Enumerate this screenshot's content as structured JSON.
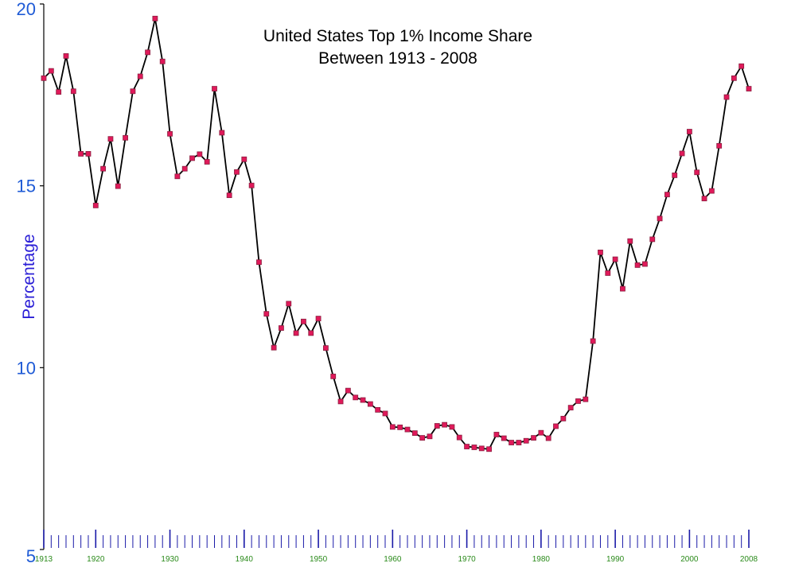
{
  "chart_data": {
    "type": "line",
    "title_lines": [
      "United States Top 1% Income Share",
      "Between 1913 - 2008"
    ],
    "xlabel": "",
    "ylabel": "Percentage",
    "xlim": [
      1913,
      2008
    ],
    "ylim": [
      5,
      20
    ],
    "y_ticks": [
      5,
      10,
      15,
      20
    ],
    "x_tick_labels": [
      1913,
      1920,
      1930,
      1940,
      1950,
      1960,
      1970,
      1980,
      1990,
      2000,
      2008
    ],
    "grid": false,
    "legend": "none",
    "colors": {
      "line": "#000000",
      "marker_fill": "#e0195a",
      "marker_edge": "#8a2040",
      "y_text": "#1f5bd6",
      "ylabel_text": "#2a1ed6",
      "x_text": "#2a8a1a",
      "x_tick_marks": "#1a1aa8",
      "axis": "#000000"
    },
    "series": [
      {
        "x": [
          1913,
          1914,
          1915,
          1916,
          1917,
          1918,
          1919,
          1920,
          1921,
          1922,
          1923,
          1924,
          1925,
          1926,
          1927,
          1928,
          1929,
          1930,
          1931,
          1932,
          1933,
          1934,
          1935,
          1936,
          1937,
          1938,
          1939,
          1940,
          1941,
          1942,
          1943,
          1944,
          1945,
          1946,
          1947,
          1948,
          1949,
          1950,
          1951,
          1952,
          1953,
          1954,
          1955,
          1956,
          1957,
          1958,
          1959,
          1960,
          1961,
          1962,
          1963,
          1964,
          1965,
          1966,
          1967,
          1968,
          1969,
          1970,
          1971,
          1972,
          1973,
          1974,
          1975,
          1976,
          1977,
          1978,
          1979,
          1980,
          1981,
          1982,
          1983,
          1984,
          1985,
          1986,
          1987,
          1988,
          1989,
          1990,
          1991,
          1992,
          1993,
          1994,
          1995,
          1996,
          1997,
          1998,
          1999,
          2000,
          2001,
          2002,
          2003,
          2004,
          2005,
          2006,
          2007,
          2008
        ],
        "values": [
          17.96,
          18.16,
          17.58,
          18.57,
          17.6,
          15.88,
          15.88,
          14.46,
          15.47,
          16.29,
          14.99,
          16.32,
          17.6,
          18.01,
          18.67,
          19.6,
          18.42,
          16.43,
          15.26,
          15.47,
          15.76,
          15.87,
          15.66,
          17.67,
          16.46,
          14.74,
          15.38,
          15.73,
          15.01,
          12.9,
          11.48,
          10.55,
          11.09,
          11.76,
          10.95,
          11.27,
          10.95,
          11.35,
          10.54,
          9.76,
          9.07,
          9.37,
          9.18,
          9.11,
          9.0,
          8.84,
          8.74,
          8.37,
          8.36,
          8.3,
          8.2,
          8.07,
          8.11,
          8.4,
          8.43,
          8.37,
          8.08,
          7.83,
          7.81,
          7.78,
          7.76,
          8.16,
          8.06,
          7.94,
          7.94,
          7.99,
          8.07,
          8.21,
          8.06,
          8.39,
          8.6,
          8.9,
          9.08,
          9.13,
          10.73,
          13.17,
          12.6,
          12.98,
          12.17,
          13.48,
          12.82,
          12.85,
          13.53,
          14.1,
          14.76,
          15.29,
          15.89,
          16.49,
          15.37,
          14.65,
          14.86,
          16.1,
          17.44,
          17.96,
          18.29,
          17.67
        ]
      }
    ]
  }
}
